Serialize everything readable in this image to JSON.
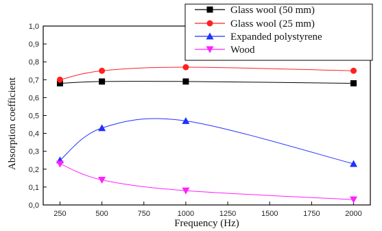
{
  "chart_data": {
    "type": "line",
    "title": "",
    "xlabel": "Frequency (Hz)",
    "ylabel": "Absorption coefficient",
    "x": [
      250,
      500,
      1000,
      2000
    ],
    "xlim": [
      150,
      2100
    ],
    "ylim": [
      0,
      1.0
    ],
    "x_ticks": [
      250,
      500,
      750,
      1000,
      1250,
      1500,
      1750,
      2000
    ],
    "x_tick_labels": [
      "250",
      "500",
      "750",
      "1000",
      "1250",
      "1500",
      "1750",
      "2000"
    ],
    "y_ticks": [
      0,
      0.1,
      0.2,
      0.3,
      0.4,
      0.5,
      0.6,
      0.7,
      0.8,
      0.9,
      1.0
    ],
    "y_tick_labels": [
      "0,0",
      "0,1",
      "0,2",
      "0,3",
      "0,4",
      "0,5",
      "0,6",
      "0,7",
      "0,8",
      "0,9",
      "1,0"
    ],
    "grid": false,
    "legend_position": "top-right",
    "series": [
      {
        "name": "Glass wool (50 mm)",
        "values": [
          0.68,
          0.69,
          0.69,
          0.68
        ],
        "color": "#000000",
        "marker": "square"
      },
      {
        "name": "Glass wool (25 mm)",
        "values": [
          0.7,
          0.75,
          0.77,
          0.75
        ],
        "color": "#ff2020",
        "marker": "circle"
      },
      {
        "name": "Expanded polystyrene",
        "values": [
          0.25,
          0.43,
          0.47,
          0.23
        ],
        "color": "#2030ff",
        "marker": "triangle-up"
      },
      {
        "name": "Wood",
        "values": [
          0.23,
          0.14,
          0.08,
          0.03
        ],
        "color": "#ff20ff",
        "marker": "triangle-down"
      }
    ]
  }
}
